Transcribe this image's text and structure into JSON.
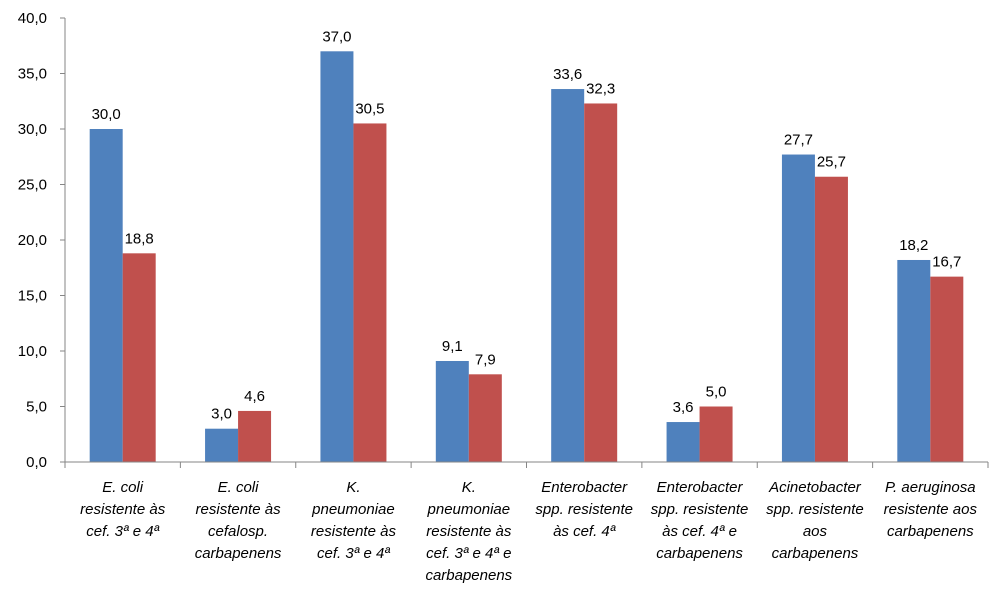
{
  "chart_data": {
    "type": "bar",
    "categories": [
      [
        "E. coli",
        "resistente às",
        "cef. 3ª e 4ª"
      ],
      [
        "E. coli",
        "resistente às",
        "cefalosp.",
        "carbapenens"
      ],
      [
        "K.",
        "pneumoniae",
        "resistente às",
        "cef. 3ª e 4ª"
      ],
      [
        "K.",
        "pneumoniae",
        "resistente às",
        "cef. 3ª e 4ª e",
        "carbapenens"
      ],
      [
        "Enterobacter",
        "spp. resistente",
        "às cef. 4ª"
      ],
      [
        "Enterobacter",
        "spp. resistente",
        "às cef. 4ª e",
        "carbapenens"
      ],
      [
        "Acinetobacter",
        "spp. resistente",
        "aos",
        "carbapenens"
      ],
      [
        "P. aeruginosa",
        "resistente aos",
        "carbapenens"
      ]
    ],
    "series": [
      {
        "color": "#4F81BD",
        "values": [
          30.0,
          3.0,
          37.0,
          9.1,
          33.6,
          3.6,
          27.7,
          18.2
        ],
        "labels": [
          "30,0",
          "3,0",
          "37,0",
          "9,1",
          "33,6",
          "3,6",
          "27,7",
          "18,2"
        ]
      },
      {
        "color": "#C0504D",
        "values": [
          18.8,
          4.6,
          30.5,
          7.9,
          32.3,
          5.0,
          25.7,
          16.7
        ],
        "labels": [
          "18,8",
          "4,6",
          "30,5",
          "7,9",
          "32,3",
          "5,0",
          "25,7",
          "16,7"
        ]
      }
    ],
    "yticks": [
      "0,0",
      "5,0",
      "10,0",
      "15,0",
      "20,0",
      "25,0",
      "30,0",
      "35,0",
      "40,0"
    ],
    "ylim": [
      0,
      40
    ],
    "ystep": 5,
    "title": "",
    "xlabel": "",
    "ylabel": "",
    "grid": false,
    "legend": "none",
    "axis_color": "#868686"
  }
}
